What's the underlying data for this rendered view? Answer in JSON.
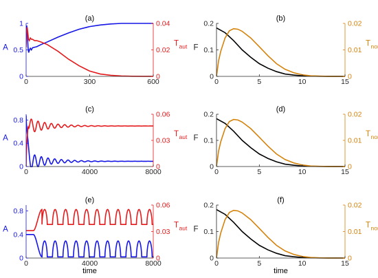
{
  "figure": {
    "shared_xlabel": "time"
  },
  "colors": {
    "blue": "#1515e6",
    "red": "#e41a1c",
    "black": "#000000",
    "orange": "#d4820a",
    "axis": "#262626"
  },
  "chart_data": [
    {
      "id": "a",
      "panel_label": "(a)",
      "type": "line",
      "xlim": [
        0,
        600
      ],
      "xticks": [
        0,
        300,
        600
      ],
      "ylabel_left": "A",
      "ylim_left": [
        0,
        1.0
      ],
      "yticks_left": [
        0,
        0.5,
        1
      ],
      "ylabel_right_main": "T",
      "ylabel_right_sub": "aut",
      "ylim_right": [
        0,
        0.04
      ],
      "yticks_right": [
        0,
        0.02,
        0.04
      ],
      "xlabel": "",
      "series": [
        {
          "axis": "left",
          "color": "blue",
          "x": [
            0,
            3,
            6,
            9,
            12,
            16,
            20,
            25,
            30,
            40,
            50,
            70,
            100,
            150,
            200,
            250,
            300,
            350,
            400,
            450,
            500,
            550,
            600
          ],
          "y": [
            0.88,
            0.96,
            0.78,
            0.55,
            0.45,
            0.5,
            0.53,
            0.5,
            0.54,
            0.55,
            0.56,
            0.6,
            0.65,
            0.74,
            0.82,
            0.89,
            0.94,
            0.97,
            0.99,
            1.0,
            1.0,
            1.0,
            1.0
          ]
        },
        {
          "axis": "right",
          "color": "red",
          "x": [
            0,
            2,
            5,
            8,
            11,
            15,
            20,
            25,
            30,
            40,
            50,
            70,
            100,
            150,
            200,
            250,
            300,
            350,
            400,
            450,
            500,
            550,
            600
          ],
          "y": [
            0.022,
            0.033,
            0.037,
            0.033,
            0.028,
            0.027,
            0.029,
            0.028,
            0.028,
            0.027,
            0.027,
            0.026,
            0.024,
            0.019,
            0.013,
            0.008,
            0.004,
            0.0018,
            0.0008,
            0.0003,
            0.0001,
            4e-05,
            1e-05
          ]
        }
      ]
    },
    {
      "id": "b",
      "panel_label": "(b)",
      "type": "line",
      "xlim": [
        0,
        15
      ],
      "xticks": [
        0,
        5,
        10,
        15
      ],
      "ylabel_left": "F",
      "ylim_left": [
        0,
        0.2
      ],
      "yticks_left": [
        0,
        0.1,
        0.2
      ],
      "ylabel_right_main": "T",
      "ylabel_right_sub": "nor",
      "ylim_right": [
        0,
        0.02
      ],
      "yticks_right": [
        0,
        0.01,
        0.02
      ],
      "xlabel": "",
      "series": [
        {
          "axis": "left",
          "color": "black",
          "x": [
            0,
            1,
            2,
            3,
            4,
            5,
            6,
            7,
            8,
            9,
            10,
            11,
            12,
            13,
            14,
            15
          ],
          "y": [
            0.183,
            0.165,
            0.135,
            0.1,
            0.072,
            0.048,
            0.031,
            0.018,
            0.009,
            0.005,
            0.002,
            0.001,
            0.0004,
            0.0001,
            4e-05,
            0.0
          ]
        },
        {
          "axis": "right",
          "color": "orange",
          "x": [
            0,
            0.25,
            0.5,
            1,
            1.5,
            2,
            2.5,
            3,
            4,
            5,
            6,
            7,
            8,
            9,
            10,
            11,
            12,
            13,
            15
          ],
          "y": [
            0.0,
            0.006,
            0.0095,
            0.0145,
            0.0172,
            0.018,
            0.0178,
            0.017,
            0.0145,
            0.0112,
            0.0078,
            0.0048,
            0.0027,
            0.0014,
            0.0006,
            0.0002,
            0.0001,
            2e-05,
            0.0
          ]
        }
      ]
    },
    {
      "id": "c",
      "panel_label": "(c)",
      "type": "line",
      "xlim": [
        0,
        8000
      ],
      "xticks": [
        0,
        4000,
        8000
      ],
      "ylabel_left": "A",
      "ylim_left": [
        0,
        0.9
      ],
      "yticks_left": [
        0,
        0.4,
        0.8
      ],
      "ylabel_right_main": "T",
      "ylabel_right_sub": "aut",
      "ylim_right": [
        0,
        0.06
      ],
      "yticks_right": [
        0,
        0.03,
        0.06
      ],
      "xlabel": "",
      "series": [
        {
          "axis": "left",
          "color": "blue",
          "kind": "damped",
          "x": [],
          "y": [],
          "start": 0.88,
          "jump_to": 0.45,
          "base": 0.09,
          "amp": 0.15,
          "period": 420,
          "decay_time": 1300,
          "t0": 120
        },
        {
          "axis": "right",
          "color": "red",
          "kind": "damped",
          "x": [],
          "y": [],
          "start": 0.0,
          "jump_to": 0.046,
          "base": 0.0465,
          "amp": -0.009,
          "period": 420,
          "decay_time": 1300,
          "t0": 120
        }
      ]
    },
    {
      "id": "d",
      "panel_label": "(d)",
      "type": "line",
      "xlim": [
        0,
        15
      ],
      "xticks": [
        0,
        5,
        10,
        15
      ],
      "ylabel_left": "F",
      "ylim_left": [
        0,
        0.2
      ],
      "yticks_left": [
        0,
        0.1,
        0.2
      ],
      "ylabel_right_main": "T",
      "ylabel_right_sub": "nor",
      "ylim_right": [
        0,
        0.02
      ],
      "yticks_right": [
        0,
        0.01,
        0.02
      ],
      "xlabel": "",
      "series": [
        {
          "axis": "left",
          "color": "black",
          "x": [
            0,
            1,
            2,
            3,
            4,
            5,
            6,
            7,
            8,
            9,
            10,
            11,
            12,
            13,
            14,
            15
          ],
          "y": [
            0.183,
            0.165,
            0.135,
            0.1,
            0.072,
            0.048,
            0.031,
            0.018,
            0.009,
            0.005,
            0.002,
            0.001,
            0.0004,
            0.0001,
            4e-05,
            0.0
          ]
        },
        {
          "axis": "right",
          "color": "orange",
          "x": [
            0,
            0.25,
            0.5,
            1,
            1.5,
            2,
            2.5,
            3,
            4,
            5,
            6,
            7,
            8,
            9,
            10,
            11,
            12,
            13,
            15
          ],
          "y": [
            0.0,
            0.006,
            0.0095,
            0.0145,
            0.0172,
            0.018,
            0.0178,
            0.017,
            0.0145,
            0.0112,
            0.0078,
            0.0048,
            0.0027,
            0.0014,
            0.0006,
            0.0002,
            0.0001,
            2e-05,
            0.0
          ]
        }
      ]
    },
    {
      "id": "e",
      "panel_label": "(e)",
      "type": "line",
      "xlim": [
        0,
        8000
      ],
      "xticks": [
        0,
        4000,
        8000
      ],
      "ylabel_left": "A",
      "ylim_left": [
        0,
        0.9
      ],
      "yticks_left": [
        0,
        0.4,
        0.8
      ],
      "ylabel_right_main": "T",
      "ylabel_right_sub": "aut",
      "ylim_right": [
        0,
        0.06
      ],
      "yticks_right": [
        0,
        0.03,
        0.06
      ],
      "xlabel": "time",
      "series": [
        {
          "axis": "left",
          "color": "blue",
          "kind": "relax",
          "x": [],
          "y": [],
          "pre_level": 0.4,
          "pre_end": 450,
          "high": 0.29,
          "low": 0.02,
          "period": 660,
          "t0": 1000
        },
        {
          "axis": "right",
          "color": "red",
          "kind": "relax",
          "x": [],
          "y": [],
          "pre_level": 0.031,
          "pre_end": 450,
          "high": 0.055,
          "low": 0.038,
          "period": 660,
          "t0": 1000,
          "invert": true
        }
      ]
    },
    {
      "id": "f",
      "panel_label": "(f)",
      "type": "line",
      "xlim": [
        0,
        15
      ],
      "xticks": [
        0,
        5,
        10,
        15
      ],
      "ylabel_left": "F",
      "ylim_left": [
        0,
        0.2
      ],
      "yticks_left": [
        0,
        0.1,
        0.2
      ],
      "ylabel_right_main": "T",
      "ylabel_right_sub": "nor",
      "ylim_right": [
        0,
        0.02
      ],
      "yticks_right": [
        0,
        0.01,
        0.02
      ],
      "xlabel": "time",
      "series": [
        {
          "axis": "left",
          "color": "black",
          "x": [
            0,
            1,
            2,
            3,
            4,
            5,
            6,
            7,
            8,
            9,
            10,
            11,
            12,
            13,
            14,
            15
          ],
          "y": [
            0.183,
            0.165,
            0.135,
            0.1,
            0.072,
            0.048,
            0.031,
            0.018,
            0.009,
            0.005,
            0.002,
            0.001,
            0.0004,
            0.0001,
            4e-05,
            0.0
          ]
        },
        {
          "axis": "right",
          "color": "orange",
          "x": [
            0,
            0.25,
            0.5,
            1,
            1.5,
            2,
            2.5,
            3,
            4,
            5,
            6,
            7,
            8,
            9,
            10,
            11,
            12,
            13,
            15
          ],
          "y": [
            0.0,
            0.006,
            0.0095,
            0.0145,
            0.0172,
            0.018,
            0.0178,
            0.017,
            0.0145,
            0.0112,
            0.0078,
            0.0048,
            0.0027,
            0.0014,
            0.0006,
            0.0002,
            0.0001,
            2e-05,
            0.0
          ]
        }
      ]
    }
  ]
}
